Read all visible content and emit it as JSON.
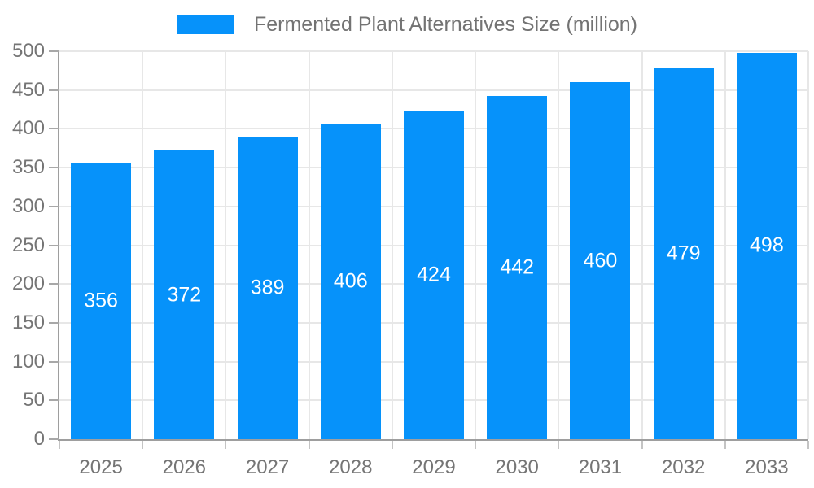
{
  "legend": {
    "label": "Fermented Plant Alternatives Size (million)"
  },
  "chart_data": {
    "type": "bar",
    "title": "Fermented Plant Alternatives Size (million)",
    "categories": [
      "2025",
      "2026",
      "2027",
      "2028",
      "2029",
      "2030",
      "2031",
      "2032",
      "2033"
    ],
    "values": [
      356,
      372,
      389,
      406,
      424,
      442,
      460,
      479,
      498
    ],
    "xlabel": "",
    "ylabel": "",
    "ylim": [
      0,
      500
    ],
    "yticks": [
      0,
      50,
      100,
      150,
      200,
      250,
      300,
      350,
      400,
      450,
      500
    ],
    "grid": true,
    "legend_position": "top",
    "value_labels": "inside-center",
    "colors": {
      "bar": "#0692fa",
      "value_label": "#ffffff",
      "axis": "#9e9e9e",
      "gridline": "#e7e7e7",
      "tick_text": "#757575",
      "legend_text": "#737373"
    }
  }
}
